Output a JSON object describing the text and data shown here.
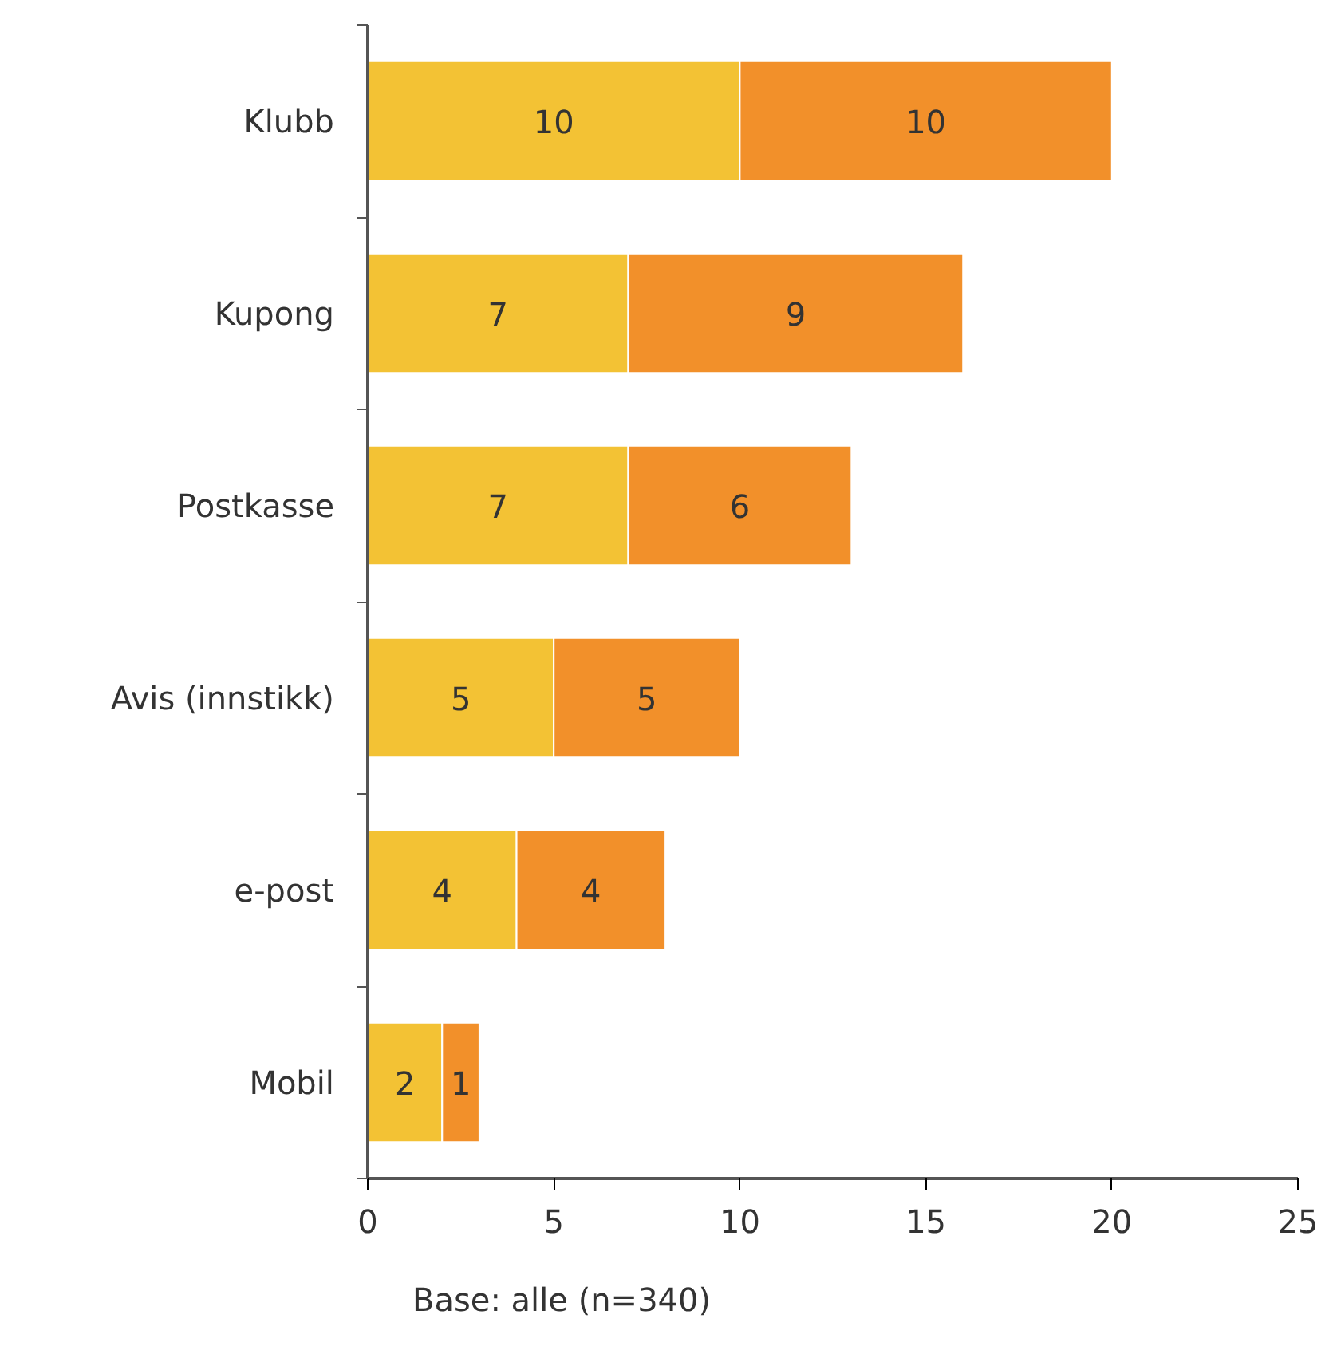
{
  "chart_data": {
    "type": "bar",
    "orientation": "horizontal",
    "stacked": true,
    "data_labels": true,
    "grid": false,
    "categories": [
      "Klubb",
      "Kupong",
      "Postkasse",
      "Avis (innstikk)",
      "e-post",
      "Mobil"
    ],
    "series": [
      {
        "color": "#f3c234",
        "values": [
          10,
          7,
          7,
          5,
          4,
          2
        ]
      },
      {
        "color": "#f2902a",
        "values": [
          10,
          9,
          6,
          5,
          4,
          1
        ]
      }
    ],
    "xlim": [
      0,
      25
    ],
    "xticks": [
      0,
      5,
      10,
      15,
      20,
      25
    ],
    "annotations": [
      "Base: alle (n=340)"
    ]
  }
}
